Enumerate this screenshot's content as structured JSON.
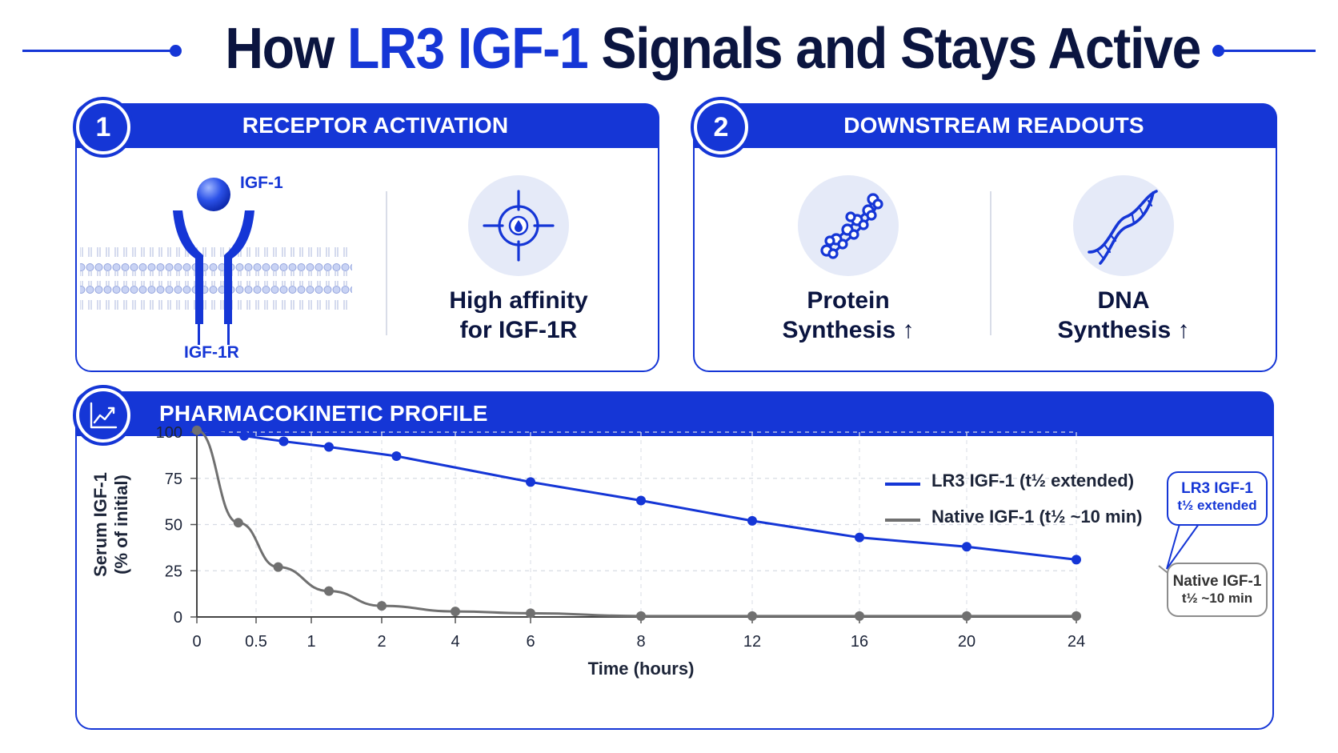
{
  "title": {
    "prefix": "How ",
    "accent": "LR3 IGF-1",
    "suffix": " Signals and Stays Active"
  },
  "colors": {
    "brand": "#1536d6",
    "dark": "#0b1540",
    "native": "#707070",
    "icon_bg": "#e5eaf8"
  },
  "panel1": {
    "number": "1",
    "header": "RECEPTOR ACTIVATION",
    "ligand_label": "IGF-1",
    "receptor_label": "IGF-1R",
    "caption_line1": "High affinity",
    "caption_line2": "for IGF-1R",
    "icon": "target-icon"
  },
  "panel2": {
    "number": "2",
    "header": "DOWNSTREAM READOUTS",
    "items": [
      {
        "line1": "Protein",
        "line2": "Synthesis ↑",
        "icon": "protein-chain-icon"
      },
      {
        "line1": "DNA",
        "line2": "Synthesis ↑",
        "icon": "dna-helix-icon"
      }
    ]
  },
  "panel3": {
    "header": "PHARMACOKINETIC PROFILE",
    "icon": "line-chart-icon",
    "callout_lr3": {
      "line1": "LR3 IGF-1",
      "line2": "t½ extended"
    },
    "callout_native": {
      "line1": "Native IGF-1",
      "line2": "t½ ~10 min"
    }
  },
  "chart_data": {
    "type": "line",
    "title": "",
    "xlabel": "Time (hours)",
    "ylabel_line1": "Serum IGF-1",
    "ylabel_line2": "(% of initial)",
    "ylim": [
      0,
      100
    ],
    "yticks": [
      0,
      25,
      50,
      75,
      100
    ],
    "xticks": [
      "0",
      "0.5",
      "1",
      "2",
      "4",
      "6",
      "8",
      "12",
      "16",
      "20",
      "24"
    ],
    "grid": true,
    "legend_position": "top-right",
    "series": [
      {
        "name": "LR3 IGF-1  (t½ extended)",
        "color": "#1536d6",
        "x": [
          0,
          0.4,
          0.75,
          1.25,
          2.4,
          6,
          8,
          12,
          16,
          20,
          24
        ],
        "y": [
          101,
          98,
          95,
          92,
          87,
          73,
          63,
          52,
          43,
          38,
          31
        ]
      },
      {
        "name": "Native IGF-1  (t½ ~10 min)",
        "color": "#707070",
        "x": [
          0,
          0.35,
          0.7,
          1.25,
          2,
          4,
          6,
          8,
          12,
          16,
          20,
          24
        ],
        "y": [
          101,
          51,
          27,
          14,
          6,
          3,
          2,
          0.5,
          0.5,
          0.5,
          0.5,
          0.5
        ]
      }
    ]
  }
}
